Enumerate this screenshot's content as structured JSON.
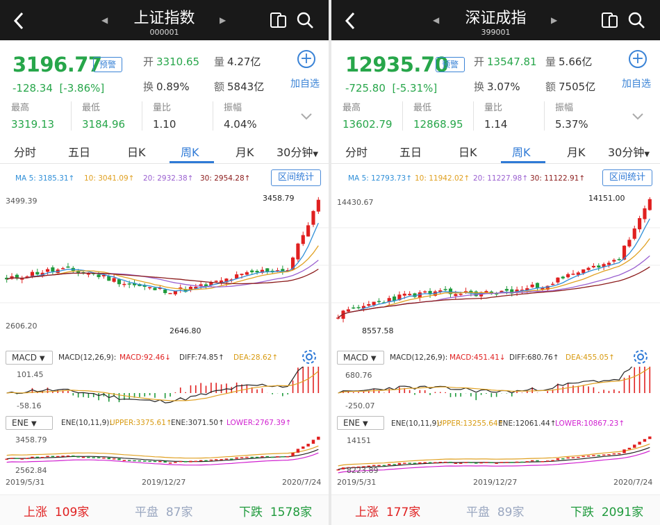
{
  "left": {
    "title": "上证指数",
    "code": "000001",
    "price": "3196.77",
    "warn_label": "预警",
    "change": "-128.34",
    "change_pct": "[-3.86%]",
    "open_k": "开",
    "open_v": "3310.65",
    "vol_k": "量",
    "vol_v": "4.27亿",
    "turn_k": "换",
    "turn_v": "0.89%",
    "amt_k": "额",
    "amt_v": "5843亿",
    "add_label": "加自选",
    "stats": [
      {
        "label": "最高",
        "value": "3319.13"
      },
      {
        "label": "最低",
        "value": "3184.96"
      },
      {
        "label": "量比",
        "value": "1.10"
      },
      {
        "label": "振幅",
        "value": "4.04%"
      }
    ],
    "tabs": [
      "分时",
      "五日",
      "日K",
      "周K",
      "月K",
      "30分钟"
    ],
    "tab_arrow": "▼",
    "ma": {
      "ma5": "MA 5: 3185.31↑",
      "ma10": "10: 3041.09↑",
      "ma20": "20: 2932.38↑",
      "ma30": "30: 2954.28↑"
    },
    "range_btn": "区间统计",
    "axis_top": "3499.39",
    "axis_bottom": "2606.20",
    "high_mark": "3458.79",
    "low_mark": "2646.80",
    "macd_select": "MACD",
    "macd_params": "MACD(12,26,9):",
    "macd_val": "MACD:92.46↓",
    "diff_val": "DIFF:74.85↑",
    "dea_val": "DEA:28.62↑",
    "macd_top": "101.45",
    "macd_bottom": "-58.16",
    "ene_select": "ENE",
    "ene_params": "ENE(10,11,9):",
    "upper_val": "UPPER:3375.61↑",
    "ene_val": "ENE:3071.50↑",
    "lower_val": "LOWER:2767.39↑",
    "ene_top": "3458.79",
    "ene_bottom": "2562.84",
    "dates": [
      "2019/5/31",
      "2019/12/27",
      "2020/7/24"
    ],
    "up_label": "上涨",
    "up_count": "109家",
    "flat_label": "平盘",
    "flat_count": "87家",
    "down_label": "下跌",
    "down_count": "1578家"
  },
  "right": {
    "title": "深证成指",
    "code": "399001",
    "price": "12935.70",
    "warn_label": "预警",
    "change": "-725.80",
    "change_pct": "[-5.31%]",
    "open_k": "开",
    "open_v": "13547.81",
    "vol_k": "量",
    "vol_v": "5.66亿",
    "turn_k": "换",
    "turn_v": "3.07%",
    "amt_k": "额",
    "amt_v": "7505亿",
    "add_label": "加自选",
    "stats": [
      {
        "label": "最高",
        "value": "13602.79"
      },
      {
        "label": "最低",
        "value": "12868.95"
      },
      {
        "label": "量比",
        "value": "1.14"
      },
      {
        "label": "振幅",
        "value": "5.37%"
      }
    ],
    "tabs": [
      "分时",
      "五日",
      "日K",
      "周K",
      "月K",
      "30分钟"
    ],
    "tab_arrow": "▼",
    "ma": {
      "ma5": "MA 5: 12793.73↑",
      "ma10": "10: 11942.02↑",
      "ma20": "20: 11227.98↑",
      "ma30": "30: 11122.91↑"
    },
    "range_btn": "区间统计",
    "axis_top": "14430.67",
    "axis_bottom": "8557.58",
    "high_mark": "14151.00",
    "low_mark": "8557.58",
    "macd_select": "MACD",
    "macd_params": "MACD(12,26,9):",
    "macd_val": "MACD:451.41↓",
    "diff_val": "DIFF:680.76↑",
    "dea_val": "DEA:455.05↑",
    "macd_top": "680.76",
    "macd_bottom": "-250.07",
    "ene_select": "ENE",
    "ene_params": "ENE(10,11,9):",
    "upper_val": "UPPER:13255.64↑",
    "ene_val": "ENE:12061.44↑",
    "lower_val": "LOWER:10867.23↑",
    "ene_top": "14151",
    "ene_bottom": "8223.89",
    "dates": [
      "2019/5/31",
      "2019/12/27",
      "2020/7/24"
    ],
    "up_label": "上涨",
    "up_count": "177家",
    "flat_label": "平盘",
    "flat_count": "89家",
    "down_label": "下跌",
    "down_count": "2091家"
  },
  "colors": {
    "up": "#e02020",
    "down": "#1f9a3c",
    "accent": "#2f7ad6",
    "ma5": "#2f8fd8",
    "ma10": "#e0a020",
    "ma20": "#9a60d0",
    "ma30": "#8b1a1a"
  }
}
